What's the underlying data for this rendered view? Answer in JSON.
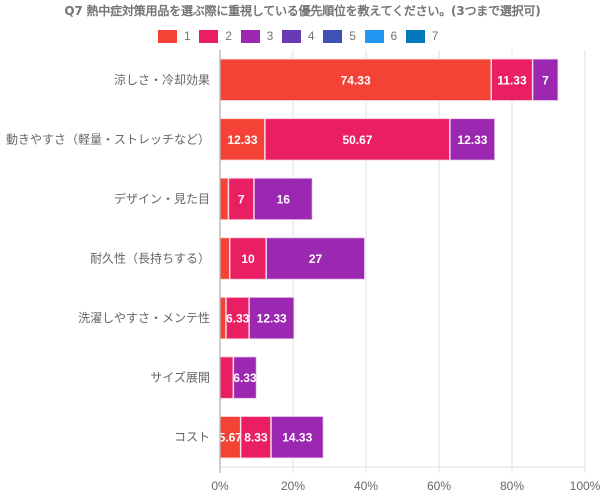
{
  "chart_data": {
    "type": "bar",
    "orientation": "horizontal",
    "stacked": true,
    "title": "Q7 熱中症対策用品を選ぶ際に重視している優先順位を教えてください。(3つまで選択可)",
    "xlabel": "",
    "ylabel": "",
    "xlim": [
      0,
      100
    ],
    "x_ticks": [
      "0%",
      "20%",
      "40%",
      "60%",
      "80%",
      "100%"
    ],
    "x_tick_values": [
      0,
      20,
      40,
      60,
      80,
      100
    ],
    "grid": true,
    "legend_position": "top-center",
    "categories": [
      "涼しさ・冷却効果",
      "動きやすさ（軽量・ストレッチなど）",
      "デザイン・見た目",
      "耐久性（長持ちする）",
      "洗濯しやすさ・メンテ性",
      "サイズ展開",
      "コスト"
    ],
    "series": [
      {
        "name": "1",
        "color": "#F44336",
        "values": [
          74.33,
          12.33,
          2.33,
          2.67,
          1.67,
          0,
          5.67
        ]
      },
      {
        "name": "2",
        "color": "#E91E63",
        "values": [
          11.33,
          50.67,
          7,
          10,
          6.33,
          3.67,
          8.33
        ]
      },
      {
        "name": "3",
        "color": "#9C27B0",
        "values": [
          7,
          12.33,
          16,
          27,
          12.33,
          6.33,
          14.33
        ]
      },
      {
        "name": "4",
        "color": "#673AB7",
        "values": [
          0,
          0,
          0,
          0,
          0,
          0,
          0
        ]
      },
      {
        "name": "5",
        "color": "#3F51B5",
        "values": [
          0,
          0,
          0,
          0,
          0,
          0,
          0
        ]
      },
      {
        "name": "6",
        "color": "#2196F3",
        "values": [
          0,
          0,
          0,
          0,
          0,
          0,
          0
        ]
      },
      {
        "name": "7",
        "color": "#0277BD",
        "values": [
          0,
          0,
          0,
          0,
          0,
          0,
          0
        ]
      }
    ],
    "data_labels": [
      [
        "74.33",
        "11.33",
        "7"
      ],
      [
        "12.33",
        "50.67",
        "12.33"
      ],
      [
        "",
        "7",
        "16"
      ],
      [
        "",
        "10",
        "27"
      ],
      [
        "",
        "6.33",
        "12.33"
      ],
      [
        "",
        "",
        "6.33"
      ],
      [
        "5.67",
        "8.33",
        "14.33"
      ]
    ]
  }
}
